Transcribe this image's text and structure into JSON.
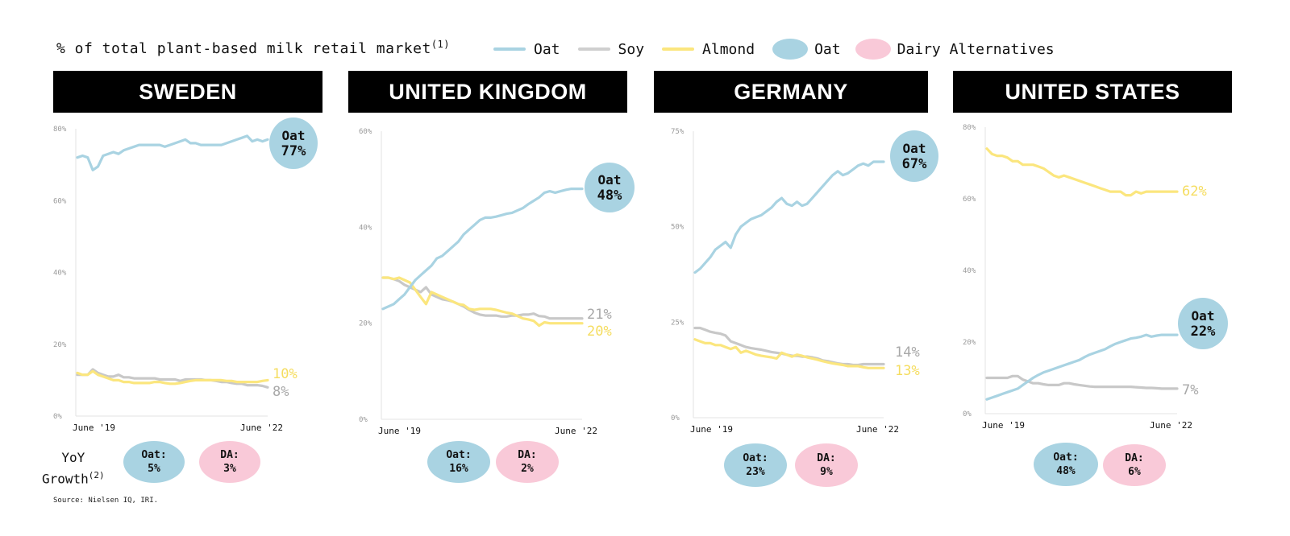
{
  "header": {
    "title": "% of total plant-based milk retail market",
    "title_sup": "(1)"
  },
  "legend": {
    "lines": [
      {
        "label": "Oat",
        "color": "#a9d3e2"
      },
      {
        "label": "Soy",
        "color": "#cfcfcf"
      },
      {
        "label": "Almond",
        "color": "#fbe67e"
      }
    ],
    "blobs": [
      {
        "label": "Oat",
        "color": "#a9d3e2"
      },
      {
        "label": "Dairy Alternatives",
        "color": "#f9c9d8"
      }
    ]
  },
  "growth": {
    "label_line1": "YoY",
    "label_line2": "Growth",
    "label_sup": "(2)"
  },
  "source": "Source: Nielsen IQ, IRI.",
  "colors": {
    "oat": "#a9d3e2",
    "soy": "#c8c8c8",
    "almond": "#fbe67e",
    "da": "#f9c9d8"
  },
  "chart_data": [
    {
      "type": "line",
      "title": "SWEDEN",
      "ylim": [
        0,
        80
      ],
      "yticks": [
        "0%",
        "20%",
        "40%",
        "60%",
        "80%"
      ],
      "x_start_label": "June '19",
      "x_end_label": "June '22",
      "series": [
        {
          "name": "Oat",
          "values": [
            72,
            72.5,
            72,
            68.5,
            69.5,
            72.5,
            73,
            73.5,
            73,
            74,
            74.5,
            75,
            75.5,
            75.5,
            75.5,
            75.5,
            75.5,
            75,
            75.5,
            76,
            76.5,
            77,
            76,
            76,
            75.5,
            75.5,
            75.5,
            75.5,
            75.5,
            76,
            76.5,
            77,
            77.5,
            78,
            76.5,
            77,
            76.5,
            77
          ]
        },
        {
          "name": "Soy",
          "values": [
            11.5,
            11.5,
            11.5,
            13,
            12,
            11.5,
            11,
            11,
            11.5,
            10.8,
            10.8,
            10.5,
            10.5,
            10.5,
            10.5,
            10.5,
            10.2,
            10.2,
            10.2,
            10.2,
            9.8,
            10.2,
            10.2,
            10.2,
            10.2,
            10,
            10,
            9.8,
            9.5,
            9.5,
            9.2,
            9,
            9,
            8.6,
            8.6,
            8.6,
            8.4,
            8
          ]
        },
        {
          "name": "Almond",
          "values": [
            12,
            11.5,
            11.5,
            12.5,
            11.5,
            11,
            10.5,
            10,
            10,
            9.5,
            9.5,
            9.2,
            9.2,
            9.2,
            9.2,
            9.5,
            9.5,
            9.2,
            9,
            9,
            9.2,
            9.5,
            9.8,
            10,
            10,
            10,
            10,
            10,
            10,
            9.8,
            9.8,
            9.5,
            9.5,
            9.5,
            9.5,
            9.5,
            9.8,
            10
          ]
        }
      ],
      "end_labels": {
        "oat_line1": "Oat",
        "oat_line2": "77%",
        "almond": "10%",
        "soy": "8%"
      },
      "growth": {
        "oat_label": "Oat:",
        "oat_value": "5%",
        "da_label": "DA:",
        "da_value": "3%"
      }
    },
    {
      "type": "line",
      "title": "UNITED KINGDOM",
      "ylim": [
        0,
        60
      ],
      "yticks": [
        "0%",
        "20%",
        "40%",
        "60%"
      ],
      "x_start_label": "June '19",
      "x_end_label": "June '22",
      "series": [
        {
          "name": "Oat",
          "values": [
            23,
            23.5,
            24,
            25,
            26,
            27.5,
            29,
            30,
            31,
            32,
            33.5,
            34,
            35,
            36,
            37,
            38.5,
            39.5,
            40.5,
            41.5,
            42,
            42,
            42.2,
            42.5,
            42.8,
            43,
            43.5,
            44,
            44.8,
            45.5,
            46.2,
            47.2,
            47.5,
            47.2,
            47.5,
            47.8,
            48,
            48,
            48
          ]
        },
        {
          "name": "Soy",
          "values": [
            29.5,
            29.5,
            29.2,
            28.8,
            28,
            27.5,
            27,
            26.5,
            27.5,
            26,
            25.5,
            25,
            24.8,
            24.5,
            24,
            23.5,
            22.8,
            22.2,
            21.8,
            21.6,
            21.6,
            21.6,
            21.4,
            21.4,
            21.6,
            21.6,
            21.8,
            21.8,
            22,
            21.5,
            21.4,
            21,
            21,
            21,
            21,
            21,
            21,
            21
          ]
        },
        {
          "name": "Almond",
          "values": [
            29.5,
            29.5,
            29.2,
            29.5,
            29,
            28.5,
            27,
            25.5,
            24,
            26.5,
            26,
            25.5,
            25,
            24.5,
            24,
            23.8,
            23,
            22.8,
            23,
            23,
            23,
            22.8,
            22.5,
            22.2,
            22,
            21.5,
            21,
            20.8,
            20.5,
            19.5,
            20.2,
            20,
            20,
            20,
            20,
            20,
            20,
            20
          ]
        }
      ],
      "end_labels": {
        "oat_line1": "Oat",
        "oat_line2": "48%",
        "soy": "21%",
        "almond": "20%"
      },
      "growth": {
        "oat_label": "Oat:",
        "oat_value": "16%",
        "da_label": "DA:",
        "da_value": "2%"
      }
    },
    {
      "type": "line",
      "title": "GERMANY",
      "ylim": [
        0,
        75
      ],
      "yticks": [
        "0%",
        "25%",
        "50%",
        "75%"
      ],
      "x_start_label": "June '19",
      "x_end_label": "June '22",
      "series": [
        {
          "name": "Oat",
          "values": [
            38,
            39,
            40.5,
            42,
            44,
            45,
            46,
            44.5,
            48,
            50,
            51,
            52,
            52.5,
            53,
            54,
            55,
            56.5,
            57.5,
            56,
            55.5,
            56.5,
            55.5,
            56,
            57.5,
            59,
            60.5,
            62,
            63.5,
            64.5,
            63.5,
            64,
            65,
            66,
            66.5,
            66,
            67,
            67,
            67
          ]
        },
        {
          "name": "Soy",
          "values": [
            23.5,
            23.5,
            23,
            22.5,
            22.2,
            22,
            21.5,
            20,
            19.5,
            19,
            18.5,
            18.2,
            18,
            17.8,
            17.5,
            17.2,
            17,
            16.8,
            16.5,
            16.2,
            16.2,
            16,
            16,
            15.8,
            15.5,
            15,
            14.8,
            14.5,
            14.2,
            14,
            14,
            13.8,
            13.8,
            14,
            14,
            14,
            14,
            14
          ]
        },
        {
          "name": "Almond",
          "values": [
            20.5,
            20,
            19.5,
            19.5,
            19,
            19,
            18.5,
            18,
            18.5,
            17,
            17.5,
            17,
            16.5,
            16.2,
            16,
            15.8,
            15.5,
            17,
            16.5,
            16,
            16.5,
            16.2,
            15.8,
            15.5,
            15.2,
            14.8,
            14.5,
            14.2,
            14,
            13.8,
            13.5,
            13.5,
            13.5,
            13.2,
            13,
            13,
            13,
            13
          ]
        }
      ],
      "end_labels": {
        "oat_line1": "Oat",
        "oat_line2": "67%",
        "soy": "14%",
        "almond": "13%"
      },
      "growth": {
        "oat_label": "Oat:",
        "oat_value": "23%",
        "da_label": "DA:",
        "da_value": "9%"
      }
    },
    {
      "type": "line",
      "title": "UNITED STATES",
      "ylim": [
        0,
        80
      ],
      "yticks": [
        "0%",
        "20%",
        "40%",
        "60%",
        "80%"
      ],
      "x_start_label": "June '19",
      "x_end_label": "June '22",
      "series": [
        {
          "name": "Almond",
          "values": [
            74,
            72.5,
            72,
            72,
            71.5,
            70.5,
            70.5,
            69.5,
            69.5,
            69.5,
            69,
            68.5,
            67.5,
            66.5,
            66,
            66.5,
            66,
            65.5,
            65,
            64.5,
            64,
            63.5,
            63,
            62.5,
            62,
            62,
            62,
            61,
            61,
            62,
            61.5,
            62,
            62,
            62,
            62,
            62,
            62,
            62
          ]
        },
        {
          "name": "Soy",
          "values": [
            10,
            10,
            10,
            10,
            10,
            10.5,
            10.5,
            9.5,
            9,
            8.5,
            8.5,
            8.2,
            8,
            8,
            8,
            8.5,
            8.5,
            8.2,
            8,
            7.8,
            7.6,
            7.5,
            7.5,
            7.5,
            7.5,
            7.5,
            7.5,
            7.5,
            7.5,
            7.4,
            7.3,
            7.2,
            7.2,
            7.1,
            7,
            7,
            7,
            7
          ]
        },
        {
          "name": "Oat",
          "values": [
            4,
            4.5,
            5,
            5.5,
            6,
            6.5,
            7,
            8,
            9,
            10,
            10.8,
            11.5,
            12,
            12.5,
            13,
            13.5,
            14,
            14.5,
            15,
            15.8,
            16.5,
            17,
            17.5,
            18,
            18.8,
            19.5,
            20,
            20.5,
            21,
            21.2,
            21.5,
            22,
            21.5,
            21.8,
            22,
            22,
            22,
            22
          ]
        }
      ],
      "end_labels": {
        "almond": "62%",
        "oat_line1": "Oat",
        "oat_line2": "22%",
        "soy": "7%"
      },
      "growth": {
        "oat_label": "Oat:",
        "oat_value": "48%",
        "da_label": "DA:",
        "da_value": "6%"
      }
    }
  ]
}
